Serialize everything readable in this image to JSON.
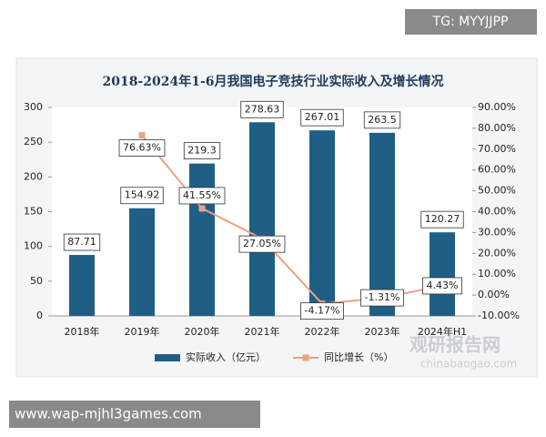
{
  "chart_data": {
    "type": "bar",
    "title": "2018-2024年1-6月我国电子竞技行业实际收入及增长情况",
    "categories": [
      "2018年",
      "2019年",
      "2020年",
      "2021年",
      "2022年",
      "2023年",
      "2024年H1"
    ],
    "series": [
      {
        "name": "实际收入（亿元）",
        "type": "bar",
        "color": "#1f5f86",
        "axis": "y",
        "values": [
          87.71,
          154.92,
          219.3,
          278.63,
          267.01,
          263.5,
          120.27
        ]
      },
      {
        "name": "同比增长（%）",
        "type": "line",
        "color": "#e8a286",
        "axis": "y2",
        "values": [
          null,
          76.63,
          41.55,
          27.05,
          -4.17,
          -1.31,
          4.43
        ],
        "value_labels": [
          null,
          "76.63%",
          "41.55%",
          "27.05%",
          "-4.17%",
          "-1.31%",
          "4.43%"
        ]
      }
    ],
    "ylim": [
      0,
      300
    ],
    "yticks": [
      0,
      50,
      100,
      150,
      200,
      250,
      300
    ],
    "y2lim": [
      -10,
      90
    ],
    "y2ticks": [
      {
        "value": -10,
        "label": "-10.00%"
      },
      {
        "value": 0,
        "label": "0.00%"
      },
      {
        "value": 10,
        "label": "10.00%"
      },
      {
        "value": 20,
        "label": "20.00%"
      },
      {
        "value": 30,
        "label": "30.00%"
      },
      {
        "value": 40,
        "label": "40.00%"
      },
      {
        "value": 50,
        "label": "50.00%"
      },
      {
        "value": 60,
        "label": "60.00%"
      },
      {
        "value": 70,
        "label": "70.00%"
      },
      {
        "value": 80,
        "label": "80.00%"
      },
      {
        "value": 90,
        "label": "90.00%"
      }
    ],
    "legend": "bottom"
  },
  "overlay": {
    "top_tag": "TG: MYYJJPP",
    "watermark": "观研报告网",
    "watermark_url": "chinabaogao.com",
    "bottom_tag": "www.wap-mjhl3games.com"
  }
}
